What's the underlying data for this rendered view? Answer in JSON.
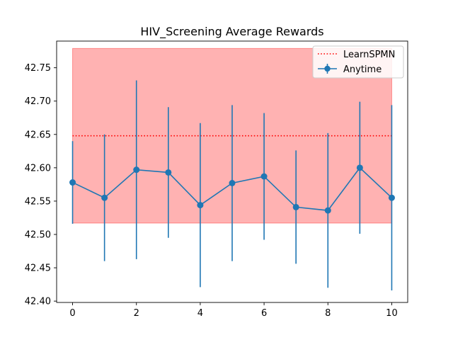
{
  "chart_data": {
    "type": "line",
    "title": "HIV_Screening Average Rewards",
    "xlabel": "",
    "ylabel": "",
    "xlim": [
      -0.5,
      10.5
    ],
    "ylim": [
      42.398,
      42.79
    ],
    "xticks": [
      0,
      2,
      4,
      6,
      8,
      10
    ],
    "xtick_labels": [
      "0",
      "2",
      "4",
      "6",
      "8",
      "10"
    ],
    "yticks": [
      42.4,
      42.45,
      42.5,
      42.55,
      42.6,
      42.65,
      42.7,
      42.75
    ],
    "ytick_labels": [
      "42.40",
      "42.45",
      "42.50",
      "42.55",
      "42.60",
      "42.65",
      "42.70",
      "42.75"
    ],
    "grid": false,
    "legend_position": "top-right",
    "series": [
      {
        "name": "Anytime",
        "kind": "errorbar",
        "color": "#1f77b4",
        "x": [
          0,
          1,
          2,
          3,
          4,
          5,
          6,
          7,
          8,
          9,
          10
        ],
        "y": [
          42.578,
          42.555,
          42.597,
          42.593,
          42.544,
          42.577,
          42.587,
          42.541,
          42.536,
          42.6,
          42.555
        ],
        "err": [
          0.062,
          0.095,
          0.134,
          0.098,
          0.123,
          0.117,
          0.095,
          0.085,
          0.116,
          0.099,
          0.139
        ]
      },
      {
        "name": "LearnSPMN",
        "kind": "hline-band",
        "color": "#ff0000",
        "band_color": "#ff6666",
        "value": 42.648,
        "band": [
          42.517,
          42.779
        ],
        "x_range": [
          0,
          10
        ]
      }
    ]
  }
}
